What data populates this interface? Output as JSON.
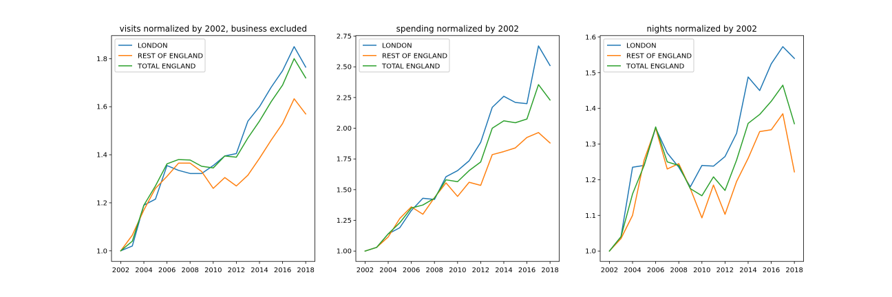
{
  "chart_data": [
    {
      "type": "line",
      "title": "visits normalized by 2002, business excluded",
      "x": [
        2002,
        2003,
        2004,
        2005,
        2006,
        2007,
        2008,
        2009,
        2010,
        2011,
        2012,
        2013,
        2014,
        2015,
        2016,
        2017,
        2018
      ],
      "xticks": [
        2002,
        2004,
        2006,
        2008,
        2010,
        2012,
        2014,
        2016,
        2018
      ],
      "xticklabels": [
        "2002",
        "2004",
        "2006",
        "2008",
        "2010",
        "2012",
        "2014",
        "2016",
        "2018"
      ],
      "xlim": [
        2001.2,
        2018.8
      ],
      "ylim": [
        0.956,
        1.896
      ],
      "yticks": [
        1.0,
        1.2,
        1.4,
        1.6,
        1.8
      ],
      "yticklabels": [
        "1.0",
        "1.2",
        "1.4",
        "1.6",
        "1.8"
      ],
      "legend": "top-left",
      "grid": false,
      "series": [
        {
          "name": "LONDON",
          "color": "#1f77b4",
          "values": [
            1.0,
            1.02,
            1.19,
            1.215,
            1.355,
            1.335,
            1.322,
            1.322,
            1.355,
            1.395,
            1.405,
            1.54,
            1.6,
            1.68,
            1.75,
            1.85,
            1.765
          ]
        },
        {
          "name": "REST OF ENGLAND",
          "color": "#ff7f0e",
          "values": [
            1.0,
            1.065,
            1.17,
            1.26,
            1.31,
            1.365,
            1.365,
            1.33,
            1.26,
            1.305,
            1.27,
            1.315,
            1.385,
            1.46,
            1.53,
            1.633,
            1.57
          ]
        },
        {
          "name": "TOTAL ENGLAND",
          "color": "#2ca02c",
          "values": [
            1.0,
            1.04,
            1.19,
            1.27,
            1.362,
            1.38,
            1.378,
            1.352,
            1.345,
            1.395,
            1.39,
            1.47,
            1.54,
            1.62,
            1.69,
            1.8,
            1.72
          ]
        }
      ]
    },
    {
      "type": "line",
      "title": "spending normalized by 2002",
      "x": [
        2002,
        2003,
        2004,
        2005,
        2006,
        2007,
        2008,
        2009,
        2010,
        2011,
        2012,
        2013,
        2014,
        2015,
        2016,
        2017,
        2018
      ],
      "xticks": [
        2002,
        2004,
        2006,
        2008,
        2010,
        2012,
        2014,
        2016,
        2018
      ],
      "xticklabels": [
        "2002",
        "2004",
        "2006",
        "2008",
        "2010",
        "2012",
        "2014",
        "2016",
        "2018"
      ],
      "xlim": [
        2001.2,
        2018.8
      ],
      "ylim": [
        0.916,
        2.754
      ],
      "yticks": [
        1.0,
        1.25,
        1.5,
        1.75,
        2.0,
        2.25,
        2.5,
        2.75
      ],
      "yticklabels": [
        "1.00",
        "1.25",
        "1.50",
        "1.75",
        "2.00",
        "2.25",
        "2.50",
        "2.75"
      ],
      "legend": "top-left",
      "grid": false,
      "series": [
        {
          "name": "LONDON",
          "color": "#1f77b4",
          "values": [
            1.0,
            1.03,
            1.14,
            1.19,
            1.33,
            1.43,
            1.42,
            1.605,
            1.655,
            1.735,
            1.885,
            2.17,
            2.26,
            2.21,
            2.2,
            2.67,
            2.51
          ]
        },
        {
          "name": "REST OF ENGLAND",
          "color": "#ff7f0e",
          "values": [
            1.0,
            1.03,
            1.115,
            1.265,
            1.36,
            1.3,
            1.435,
            1.555,
            1.445,
            1.56,
            1.535,
            1.785,
            1.81,
            1.84,
            1.925,
            1.965,
            1.88
          ]
        },
        {
          "name": "TOTAL ENGLAND",
          "color": "#2ca02c",
          "values": [
            1.0,
            1.03,
            1.14,
            1.23,
            1.35,
            1.375,
            1.43,
            1.58,
            1.565,
            1.655,
            1.725,
            2.0,
            2.06,
            2.045,
            2.075,
            2.355,
            2.23
          ]
        }
      ]
    },
    {
      "type": "line",
      "title": "nights normalized by 2002",
      "x": [
        2002,
        2003,
        2004,
        2005,
        2006,
        2007,
        2008,
        2009,
        2010,
        2011,
        2012,
        2013,
        2014,
        2015,
        2016,
        2017,
        2018
      ],
      "xticks": [
        2002,
        2004,
        2006,
        2008,
        2010,
        2012,
        2014,
        2016,
        2018
      ],
      "xticklabels": [
        "2002",
        "2004",
        "2006",
        "2008",
        "2010",
        "2012",
        "2014",
        "2016",
        "2018"
      ],
      "xlim": [
        2001.2,
        2018.8
      ],
      "ylim": [
        0.971,
        1.604
      ],
      "yticks": [
        1.0,
        1.1,
        1.2,
        1.3,
        1.4,
        1.5,
        1.6
      ],
      "yticklabels": [
        "1.0",
        "1.1",
        "1.2",
        "1.3",
        "1.4",
        "1.5",
        "1.6"
      ],
      "legend": "top-left",
      "grid": false,
      "series": [
        {
          "name": "LONDON",
          "color": "#1f77b4",
          "values": [
            1.0,
            1.04,
            1.235,
            1.24,
            1.345,
            1.275,
            1.235,
            1.18,
            1.24,
            1.238,
            1.265,
            1.33,
            1.488,
            1.45,
            1.525,
            1.573,
            1.54
          ]
        },
        {
          "name": "REST OF ENGLAND",
          "color": "#ff7f0e",
          "values": [
            1.0,
            1.035,
            1.1,
            1.255,
            1.345,
            1.23,
            1.245,
            1.175,
            1.093,
            1.185,
            1.103,
            1.195,
            1.26,
            1.335,
            1.34,
            1.385,
            1.222
          ]
        },
        {
          "name": "TOTAL ENGLAND",
          "color": "#2ca02c",
          "values": [
            1.0,
            1.04,
            1.16,
            1.24,
            1.348,
            1.25,
            1.24,
            1.175,
            1.155,
            1.208,
            1.17,
            1.255,
            1.358,
            1.383,
            1.42,
            1.465,
            1.357
          ]
        }
      ]
    }
  ]
}
